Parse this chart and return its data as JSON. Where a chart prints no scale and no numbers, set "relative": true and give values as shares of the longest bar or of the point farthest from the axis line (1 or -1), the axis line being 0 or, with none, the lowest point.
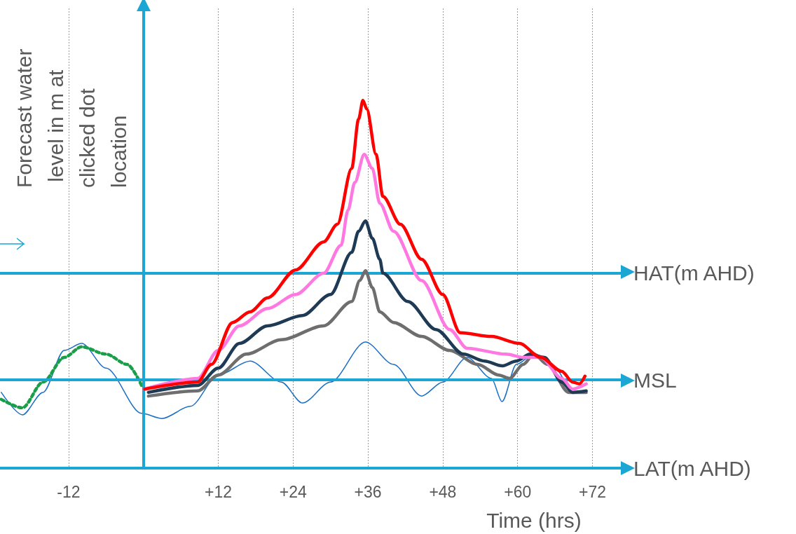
{
  "chart_data": {
    "type": "line",
    "relative": true,
    "xlabel": "Time (hrs)",
    "ylabel": "Forecast water level in m at clicked dot location",
    "xlim": [
      -23,
      77
    ],
    "xticks": [
      {
        "value": -12,
        "label": "-12"
      },
      {
        "value": 12,
        "label": "+12"
      },
      {
        "value": 24,
        "label": "+24"
      },
      {
        "value": 36,
        "label": "+36"
      },
      {
        "value": 48,
        "label": "+48"
      },
      {
        "value": 60,
        "label": "+60"
      },
      {
        "value": 72,
        "label": "+72"
      }
    ],
    "grid": "x",
    "marker": "none",
    "line_style": "solid",
    "ref_lines": [
      {
        "axis": "y",
        "value": 0.533,
        "label": "HAT(m AHD)",
        "color": "#1ba6d4"
      },
      {
        "axis": "y",
        "value": 0.238,
        "label": "MSL",
        "color": "#1ba6d4"
      },
      {
        "axis": "y",
        "value": 0,
        "label": "LAT(m AHD)",
        "color": "#1ba6d4"
      },
      {
        "axis": "x",
        "value": 0,
        "color": "#1ba6d4"
      }
    ],
    "series": [
      {
        "color": "#1a6fc4",
        "x": [
          -22.8,
          -19.4,
          -16.1,
          -12.7,
          -9.9,
          -6,
          -0.3,
          3,
          7.5,
          12,
          17.1,
          22.1,
          25.5,
          30,
          35.6,
          40.1,
          44.6,
          48,
          51.9,
          55.8,
          57.5,
          59.8,
          62.6,
          66,
          68.8,
          71
        ],
        "values": [
          0.206,
          0.145,
          0.206,
          0.32,
          0.339,
          0.272,
          0.149,
          0.135,
          0.168,
          0.253,
          0.291,
          0.234,
          0.177,
          0.234,
          0.343,
          0.282,
          0.196,
          0.234,
          0.301,
          0.244,
          0.181,
          0.282,
          0.31,
          0.272,
          0.206,
          0.206
        ]
      },
      {
        "color": "#1a9e4a",
        "line_style": "dotted",
        "x": [
          -22.8,
          -19.4,
          -16.1,
          -12.7,
          -9.9,
          -6,
          -2.6,
          -0.3
        ],
        "values": [
          0.187,
          0.164,
          0.234,
          0.301,
          0.33,
          0.31,
          0.282,
          0.225
        ]
      },
      {
        "color": "#6e6e6e",
        "x": [
          0.8,
          8.7,
          12,
          16.5,
          22.1,
          28.9,
          33.4,
          34.7,
          35.6,
          36.7,
          37.9,
          40.1,
          44.6,
          49.1,
          53.6,
          57,
          58.7,
          60.9,
          62.6,
          64.8,
          68.2,
          71
        ],
        "values": [
          0.196,
          0.21,
          0.253,
          0.31,
          0.349,
          0.387,
          0.453,
          0.51,
          0.537,
          0.491,
          0.425,
          0.396,
          0.358,
          0.32,
          0.282,
          0.253,
          0.244,
          0.282,
          0.31,
          0.282,
          0.206,
          0.206
        ]
      },
      {
        "color": "#1f3a55",
        "x": [
          0.8,
          8.7,
          12,
          15.4,
          19.9,
          25.5,
          30,
          33.4,
          34.5,
          35.6,
          36.7,
          37.9,
          38.4,
          42.4,
          46.9,
          51.3,
          54.7,
          57.5,
          59.8,
          62,
          64.3,
          67.1,
          68.8,
          71
        ],
        "values": [
          0.206,
          0.225,
          0.272,
          0.339,
          0.387,
          0.415,
          0.472,
          0.587,
          0.644,
          0.672,
          0.625,
          0.568,
          0.53,
          0.453,
          0.377,
          0.31,
          0.291,
          0.278,
          0.291,
          0.31,
          0.301,
          0.234,
          0.206,
          0.21
        ]
      },
      {
        "color": "#ff77e0",
        "x": [
          0.2,
          8.7,
          12,
          15.4,
          19.9,
          24.4,
          28.9,
          31.7,
          32.8,
          33.9,
          35.4,
          36.7,
          37.9,
          40.1,
          44.6,
          49.1,
          51.9,
          58.1,
          60.9,
          63.7,
          67.1,
          68.8,
          71
        ],
        "values": [
          0.215,
          0.244,
          0.32,
          0.387,
          0.434,
          0.472,
          0.53,
          0.606,
          0.701,
          0.777,
          0.853,
          0.815,
          0.72,
          0.644,
          0.51,
          0.377,
          0.326,
          0.31,
          0.301,
          0.301,
          0.244,
          0.215,
          0.229
        ]
      },
      {
        "color": "#ff0000",
        "x": [
          0.2,
          8.7,
          10.9,
          14.3,
          17.1,
          19.9,
          24.4,
          28.9,
          31.1,
          33.4,
          34.5,
          35.2,
          35.8,
          37.3,
          38.4,
          41.2,
          44.6,
          48,
          50.8,
          55.8,
          60.3,
          63.7,
          67.1,
          68.8,
          69.9,
          70.8
        ],
        "values": [
          0.215,
          0.234,
          0.282,
          0.396,
          0.425,
          0.463,
          0.539,
          0.615,
          0.663,
          0.815,
          0.949,
          1,
          0.977,
          0.853,
          0.739,
          0.663,
          0.568,
          0.472,
          0.368,
          0.358,
          0.339,
          0.301,
          0.263,
          0.234,
          0.229,
          0.25
        ]
      }
    ]
  }
}
